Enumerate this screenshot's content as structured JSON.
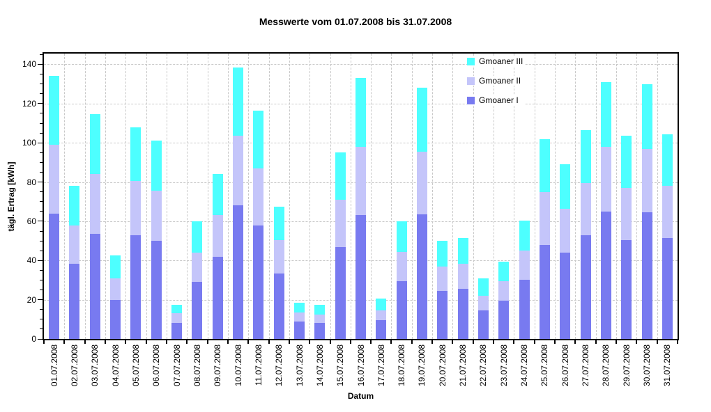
{
  "chart_data": {
    "type": "bar",
    "stacked": true,
    "title": "Messwerte vom 01.07.2008 bis 31.07.2008",
    "xlabel": "Datum",
    "ylabel": "tägl. Ertrag [kWh]",
    "ylim": [
      0,
      145.5
    ],
    "ytick_major": 20,
    "ytick_minor": 5,
    "grid": "dashed-gray-horizontal-and-vertical",
    "legend_position": "top-right-inside",
    "categories": [
      "01.07.2008",
      "02.07.2008",
      "03.07.2008",
      "04.07.2008",
      "05.07.2008",
      "06.07.2008",
      "07.07.2008",
      "08.07.2008",
      "09.07.2008",
      "10.07.2008",
      "11.07.2008",
      "12.07.2008",
      "13.07.2008",
      "14.07.2008",
      "15.07.2008",
      "16.07.2008",
      "17.07.2008",
      "18.07.2008",
      "19.07.2008",
      "20.07.2008",
      "21.07.2008",
      "22.07.2008",
      "23.07.2008",
      "24.07.2008",
      "25.07.2008",
      "26.07.2008",
      "27.07.2008",
      "28.07.2008",
      "29.07.2008",
      "30.07.2008",
      "31.07.2008"
    ],
    "series": [
      {
        "name": "Gmoaner I",
        "color": "#787af0",
        "values": [
          64,
          38.5,
          53.5,
          20,
          53,
          50,
          8,
          29,
          42,
          68,
          58,
          33.5,
          9,
          8,
          47,
          63,
          9.5,
          29.5,
          63.5,
          24.5,
          25.5,
          14.5,
          19.5,
          30,
          48,
          44,
          53,
          65,
          50.5,
          64.5,
          51.5
        ]
      },
      {
        "name": "Gmoaner II",
        "color": "#c4c5fa",
        "values": [
          35,
          19.5,
          30.5,
          11,
          27.5,
          25.5,
          5,
          15,
          21,
          35.5,
          29,
          17,
          4.5,
          4.5,
          24,
          35,
          5,
          15,
          32,
          12.5,
          13,
          7.5,
          10,
          15,
          27,
          22.5,
          26.5,
          33,
          26.5,
          32.5,
          26.5
        ]
      },
      {
        "name": "Gmoaner III",
        "color": "#4dffff",
        "values": [
          35,
          20,
          30.5,
          11.5,
          27.5,
          25.5,
          4.5,
          16,
          21,
          35,
          29.5,
          17,
          5,
          5,
          24,
          35,
          6,
          15.5,
          32.5,
          13,
          13,
          9,
          10,
          15.5,
          27,
          22.5,
          27,
          33,
          26.5,
          33,
          26.5
        ]
      }
    ]
  },
  "legend": [
    {
      "label": "Gmoaner III",
      "color": "#4dffff"
    },
    {
      "label": "Gmoaner II",
      "color": "#c4c5fa"
    },
    {
      "label": "Gmoaner I",
      "color": "#787af0"
    }
  ],
  "colors": {
    "background": "#ffffff",
    "grid": "#c8c8c8",
    "axis": "#000000"
  }
}
